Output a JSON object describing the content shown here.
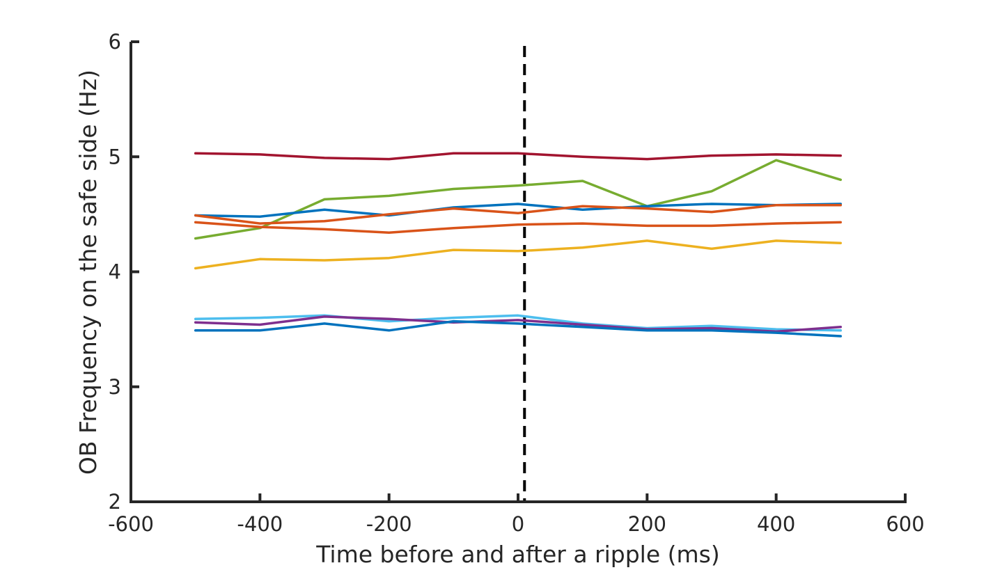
{
  "chart_data": {
    "type": "line",
    "title": "",
    "xlabel": "Time before and after a ripple (ms)",
    "ylabel": "OB Frequency on the safe side (Hz)",
    "xlim": [
      -600,
      600
    ],
    "ylim": [
      2,
      6
    ],
    "xticks": [
      -600,
      -400,
      -200,
      0,
      200,
      400,
      600
    ],
    "yticks": [
      2,
      3,
      4,
      5,
      6
    ],
    "xtick_labels": [
      "-600",
      "-400",
      "-200",
      "0",
      "200",
      "400",
      "600"
    ],
    "ytick_labels": [
      "2",
      "3",
      "4",
      "5",
      "6"
    ],
    "grid": false,
    "legend": "none",
    "reference_line": {
      "x": 10,
      "style": "dashed",
      "color": "#000000"
    },
    "x": [
      -500,
      -400,
      -300,
      -200,
      -100,
      0,
      100,
      200,
      300,
      400,
      500
    ],
    "series": [
      {
        "color": "#A2142F",
        "values": [
          5.03,
          5.02,
          4.99,
          4.98,
          5.03,
          5.03,
          5.0,
          4.98,
          5.01,
          5.02,
          5.01
        ]
      },
      {
        "color": "#77AC30",
        "values": [
          4.29,
          4.38,
          4.63,
          4.66,
          4.72,
          4.75,
          4.79,
          4.57,
          4.7,
          4.97,
          4.8
        ]
      },
      {
        "color": "#0072BD",
        "values": [
          4.49,
          4.48,
          4.54,
          4.49,
          4.56,
          4.59,
          4.54,
          4.57,
          4.59,
          4.58,
          4.59
        ]
      },
      {
        "color": "#D95319",
        "values": [
          4.49,
          4.42,
          4.44,
          4.5,
          4.55,
          4.51,
          4.57,
          4.55,
          4.52,
          4.58,
          4.58
        ]
      },
      {
        "color": "#D95319",
        "values": [
          4.43,
          4.39,
          4.37,
          4.34,
          4.38,
          4.41,
          4.42,
          4.4,
          4.4,
          4.42,
          4.43
        ]
      },
      {
        "color": "#EDB120",
        "values": [
          4.03,
          4.11,
          4.1,
          4.12,
          4.19,
          4.18,
          4.21,
          4.27,
          4.2,
          4.27,
          4.25
        ]
      },
      {
        "color": "#4DBEEE",
        "values": [
          3.59,
          3.6,
          3.62,
          3.57,
          3.6,
          3.62,
          3.55,
          3.51,
          3.53,
          3.5,
          3.49
        ]
      },
      {
        "color": "#7E2F8E",
        "values": [
          3.56,
          3.54,
          3.61,
          3.59,
          3.56,
          3.58,
          3.54,
          3.5,
          3.51,
          3.48,
          3.52
        ]
      },
      {
        "color": "#0072BD",
        "values": [
          3.49,
          3.49,
          3.55,
          3.49,
          3.57,
          3.55,
          3.52,
          3.49,
          3.49,
          3.47,
          3.44
        ]
      }
    ]
  }
}
